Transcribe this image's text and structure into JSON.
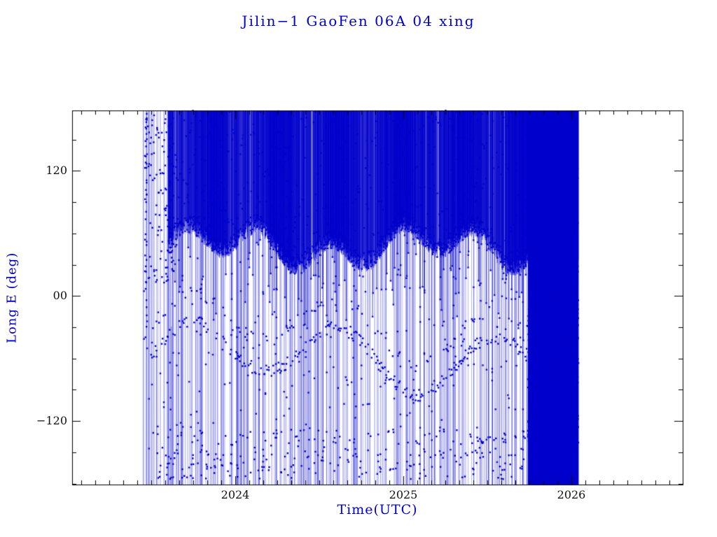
{
  "page": {
    "background": "#ffffff"
  },
  "chart_data": {
    "type": "scatter",
    "title": "Jilin−1 GaoFen 06A 04 xing",
    "xlabel": "Time(UTC)",
    "ylabel": "Long E (deg)",
    "xlim": [
      2023.03,
      2026.66
    ],
    "ylim": [
      -181,
      178
    ],
    "x_ticks": [
      {
        "value": 2024,
        "label": "2024"
      },
      {
        "value": 2025,
        "label": "2025"
      },
      {
        "value": 2026,
        "label": "2026"
      }
    ],
    "y_ticks": [
      {
        "value": 120,
        "label": "120"
      },
      {
        "value": 0,
        "label": "00"
      },
      {
        "value": -120,
        "label": "−120"
      }
    ],
    "x_minor_step": 0.0833333,
    "y_minor_step": 30,
    "grid": false,
    "legend": null,
    "marker": "square",
    "marker_size_px": 2.4,
    "series_color": "#0000cc",
    "axis_color": "#000000",
    "data_extent": {
      "t_start": 2023.45,
      "t_end": 2026.05
    },
    "pattern_description": "Satellite sub-longitude vs time. Dense blue vertical wrap lines span the full -180..180 deg range from mid-2023 through early 2026. A nearly solid blue band fills longitudes ~40..180 deg with a wavy lower envelope; sparse dotted wandering tracks sit near -40..-90 deg; scattered points near -130..-175 deg; a fully dense column (all longitudes) appears from ~2025.75 to ~2026.05.",
    "synthesis": {
      "seed": 1337,
      "background_lines": {
        "count": 380,
        "alpha": 0.6,
        "width": 0.7,
        "marker_prob": 0.6
      },
      "upper_band": {
        "t_start": 2023.6,
        "t_end": 2026.04,
        "count": 2800,
        "y_top": 178,
        "envelope_base": 48,
        "envelope_amp1": 14,
        "period1": 0.43,
        "envelope_amp2": 10,
        "period2": 1.25,
        "noise": 16,
        "min_low": 20,
        "max_low": 88,
        "gap_period": 0.37,
        "gap_strength": 0.45,
        "spike_prob": 0.07,
        "spike_depth": 75,
        "edge_marker_prob": 0.45,
        "inner_marker_prob": 0.25
      },
      "early_scatter": {
        "t_start": 2023.46,
        "t_end": 2023.66,
        "count": 130,
        "y_min": 10,
        "y_max": 175
      },
      "leading_column": {
        "t": 2023.47,
        "count": 26,
        "y_min": -45,
        "y_max": 170
      },
      "lower_track": {
        "t_start": 2023.5,
        "t_end": 2025.85,
        "count": 450,
        "base": -58,
        "amp": 26,
        "period": 0.9,
        "jitter": 6,
        "point_prob": 0.5,
        "second_track_offset": 28,
        "second_track_prob": 0.18,
        "drop_line_prob": 0.012
      },
      "bottom_scatter": {
        "t_start": 2023.5,
        "t_end": 2025.95,
        "count": 260,
        "y_min": -176,
        "y_max": -128
      },
      "end_block": {
        "t_start": 2025.74,
        "t_end": 2026.04,
        "line_count": 650,
        "marker_count": 900,
        "marker_y_min": -150,
        "marker_y_max": 0
      }
    }
  }
}
